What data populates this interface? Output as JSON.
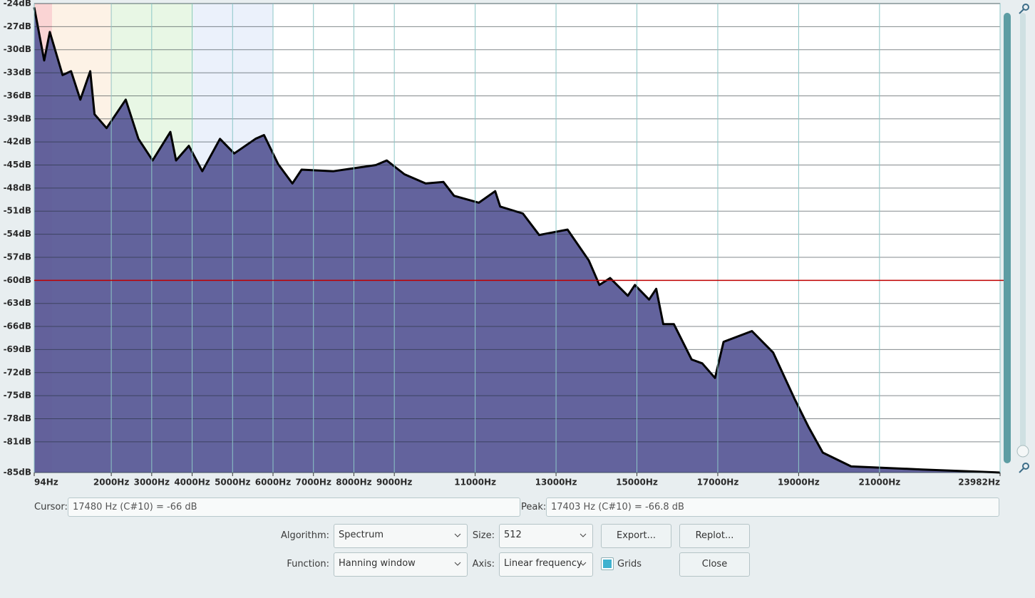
{
  "chart_data": {
    "type": "area",
    "x": [
      94,
      340,
      480,
      796,
      1006,
      1234,
      1480,
      1585,
      1883,
      2357,
      2672,
      3023,
      3462,
      3602,
      3918,
      4251,
      4689,
      5040,
      5566,
      5777,
      6128,
      6479,
      6707,
      7496,
      8548,
      8811,
      9250,
      9776,
      10215,
      10478,
      11092,
      11495,
      11618,
      12179,
      12582,
      13284,
      13810,
      14073,
      14337,
      14775,
      14950,
      15301,
      15477,
      15652,
      15915,
      16354,
      16617,
      16932,
      17143,
      17845,
      18371,
      18897,
      19248,
      19598,
      20300,
      22054,
      23982
    ],
    "values": [
      -24.5,
      -31.4,
      -27.7,
      -33.3,
      -32.8,
      -36.5,
      -32.8,
      -38.4,
      -40.2,
      -36.5,
      -41.6,
      -44.4,
      -40.7,
      -44.4,
      -42.5,
      -45.8,
      -41.6,
      -43.5,
      -41.6,
      -41.1,
      -44.9,
      -47.4,
      -45.6,
      -45.8,
      -45.0,
      -44.4,
      -46.2,
      -47.4,
      -47.2,
      -49.0,
      -49.9,
      -48.4,
      -50.4,
      -51.3,
      -54.1,
      -53.4,
      -57.4,
      -60.6,
      -59.7,
      -62.0,
      -60.6,
      -62.5,
      -61.1,
      -65.7,
      -65.7,
      -70.3,
      -70.8,
      -72.7,
      -68.0,
      -66.6,
      -69.4,
      -75.4,
      -79.1,
      -82.4,
      -84.2,
      -84.6,
      -85
    ],
    "color": "#5b5b98",
    "line_color": "#000000",
    "cursor_db": -60,
    "cursor_color": "#c00000",
    "grid": true,
    "xlim": [
      94,
      23982
    ],
    "ylim": [
      -24,
      -85
    ],
    "xticks": [
      {
        "value": 94,
        "label": "94Hz"
      },
      {
        "value": 2000,
        "label": "2000Hz"
      },
      {
        "value": 3000,
        "label": "3000Hz"
      },
      {
        "value": 4000,
        "label": "4000Hz"
      },
      {
        "value": 5000,
        "label": "5000Hz"
      },
      {
        "value": 6000,
        "label": "6000Hz"
      },
      {
        "value": 7000,
        "label": "7000Hz"
      },
      {
        "value": 8000,
        "label": "8000Hz"
      },
      {
        "value": 9000,
        "label": "9000Hz"
      },
      {
        "value": 11000,
        "label": "11000Hz"
      },
      {
        "value": 13000,
        "label": "13000Hz"
      },
      {
        "value": 15000,
        "label": "15000Hz"
      },
      {
        "value": 17000,
        "label": "17000Hz"
      },
      {
        "value": 19000,
        "label": "19000Hz"
      },
      {
        "value": 21000,
        "label": "21000Hz"
      },
      {
        "value": 23982,
        "label": "23982Hz"
      }
    ],
    "yticks": [
      {
        "value": -24,
        "label": "-24dB"
      },
      {
        "value": -27,
        "label": "-27dB"
      },
      {
        "value": -30,
        "label": "-30dB"
      },
      {
        "value": -33,
        "label": "-33dB"
      },
      {
        "value": -36,
        "label": "-36dB"
      },
      {
        "value": -39,
        "label": "-39dB"
      },
      {
        "value": -42,
        "label": "-42dB"
      },
      {
        "value": -45,
        "label": "-45dB"
      },
      {
        "value": -48,
        "label": "-48dB"
      },
      {
        "value": -51,
        "label": "-51dB"
      },
      {
        "value": -54,
        "label": "-54dB"
      },
      {
        "value": -57,
        "label": "-57dB"
      },
      {
        "value": -60,
        "label": "-60dB"
      },
      {
        "value": -63,
        "label": "-63dB"
      },
      {
        "value": -66,
        "label": "-66dB"
      },
      {
        "value": -69,
        "label": "-69dB"
      },
      {
        "value": -72,
        "label": "-72dB"
      },
      {
        "value": -75,
        "label": "-75dB"
      },
      {
        "value": -78,
        "label": "-78dB"
      },
      {
        "value": -81,
        "label": "-81dB"
      },
      {
        "value": -85,
        "label": "-85dB"
      }
    ]
  },
  "ui": {
    "cursor_label": "Cursor:",
    "cursor_value": "17480 Hz (C#10) = -66 dB",
    "peak_label": "Peak:",
    "peak_value": "17403 Hz (C#10) = -66.8 dB",
    "algorithm_label": "Algorithm:",
    "algorithm": "Spectrum",
    "size_label": "Size:",
    "size": "512",
    "export": "Export...",
    "replot": "Replot...",
    "function_label": "Function:",
    "function": "Hanning window",
    "axis_label": "Axis:",
    "axis": "Linear frequency",
    "grids": "Grids",
    "close": "Close"
  }
}
